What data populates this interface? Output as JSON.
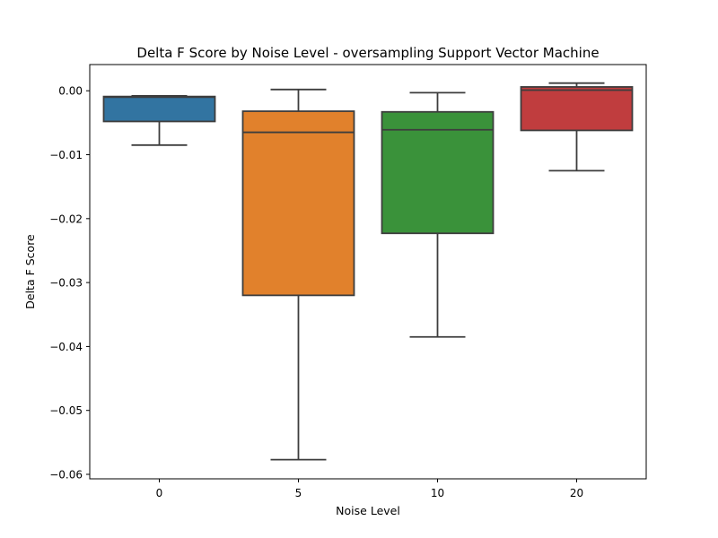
{
  "chart_data": {
    "type": "box",
    "title": "Delta F Score by Noise Level - oversampling Support Vector Machine",
    "xlabel": "Noise Level",
    "ylabel": "Delta F Score",
    "categories": [
      "0",
      "5",
      "10",
      "20"
    ],
    "ylim": [
      -0.0607,
      0.0041
    ],
    "yticks": [
      0.0,
      -0.01,
      -0.02,
      -0.03,
      -0.04,
      -0.05,
      -0.06
    ],
    "ytick_labels": [
      "0.00",
      "−0.01",
      "−0.02",
      "−0.03",
      "−0.04",
      "−0.05",
      "−0.06"
    ],
    "grid": false,
    "boxes": [
      {
        "category": "0",
        "whisker_low": -0.0085,
        "q1": -0.0048,
        "median": -0.001,
        "q3": -0.0009,
        "whisker_high": -0.0008,
        "color": "#3274a1"
      },
      {
        "category": "5",
        "whisker_low": -0.0577,
        "q1": -0.032,
        "median": -0.0065,
        "q3": -0.0032,
        "whisker_high": 0.0002,
        "color": "#e1812c"
      },
      {
        "category": "10",
        "whisker_low": -0.0385,
        "q1": -0.0223,
        "median": -0.0061,
        "q3": -0.0033,
        "whisker_high": -0.0003,
        "color": "#3a923a"
      },
      {
        "category": "20",
        "whisker_low": -0.0125,
        "q1": -0.0062,
        "median": 0.0001,
        "q3": 0.0006,
        "whisker_high": 0.0012,
        "color": "#c03d3e"
      }
    ]
  }
}
